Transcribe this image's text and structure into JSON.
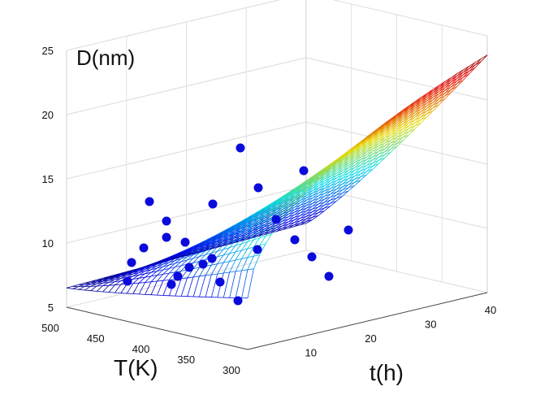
{
  "chart_data": {
    "type": "surface",
    "zlabel": "D(nm)",
    "xlabel": "t(h)",
    "ylabel": "T(K)",
    "zlim": [
      5,
      25
    ],
    "xlim": [
      0,
      40
    ],
    "ylim": [
      300,
      500
    ],
    "z_ticks": [
      "5",
      "10",
      "15",
      "20",
      "25"
    ],
    "x_ticks": [
      "10",
      "20",
      "30",
      "40"
    ],
    "y_ticks": [
      "500",
      "450",
      "400",
      "350",
      "300"
    ],
    "grid": true,
    "colormap": "jet",
    "surface_color_range": [
      "#1a1ad0",
      "#e8121a"
    ],
    "marker_color": "#0a0adc",
    "points": [
      {
        "t": 0,
        "T": 490,
        "D": 7.0
      },
      {
        "t": 0,
        "T": 470,
        "D": 8.5
      },
      {
        "t": 0,
        "T": 450,
        "D": 9.5
      },
      {
        "t": 0,
        "T": 420,
        "D": 13.0
      },
      {
        "t": 0,
        "T": 400,
        "D": 11.5
      },
      {
        "t": 0,
        "T": 390,
        "D": 10.5
      },
      {
        "t": 0,
        "T": 370,
        "D": 10.0
      },
      {
        "t": 0,
        "T": 400,
        "D": 7.0
      },
      {
        "t": 0,
        "T": 380,
        "D": 7.5
      },
      {
        "t": 0,
        "T": 360,
        "D": 8.0
      },
      {
        "t": 0,
        "T": 340,
        "D": 8.5
      },
      {
        "t": 0,
        "T": 320,
        "D": 9.0
      },
      {
        "t": 0,
        "T": 310,
        "D": 13.0
      },
      {
        "t": 4,
        "T": 300,
        "D": 7.0
      },
      {
        "t": 6,
        "T": 300,
        "D": 5.5
      },
      {
        "t": 10,
        "T": 300,
        "D": 17.0
      },
      {
        "t": 12,
        "T": 300,
        "D": 9.5
      },
      {
        "t": 14,
        "T": 300,
        "D": 14.0
      },
      {
        "t": 20,
        "T": 300,
        "D": 11.5
      },
      {
        "t": 24,
        "T": 300,
        "D": 10.0
      },
      {
        "t": 24,
        "T": 300,
        "D": 15.0
      },
      {
        "t": 26,
        "T": 300,
        "D": 8.5
      },
      {
        "t": 30,
        "T": 300,
        "D": 7.0
      },
      {
        "t": 36,
        "T": 300,
        "D": 10.5
      }
    ]
  }
}
